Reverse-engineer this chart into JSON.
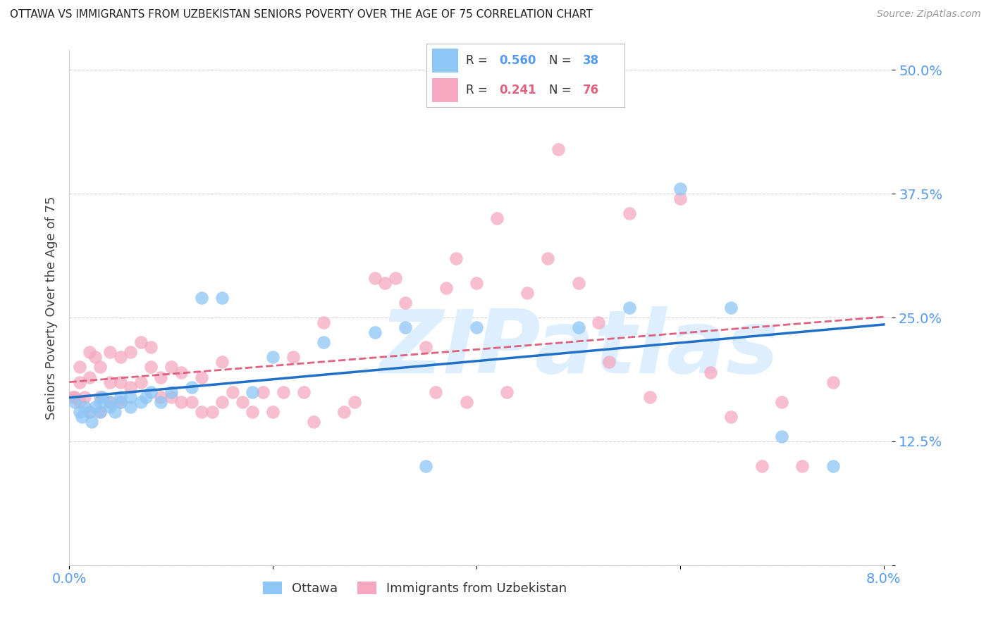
{
  "title": "OTTAWA VS IMMIGRANTS FROM UZBEKISTAN SENIORS POVERTY OVER THE AGE OF 75 CORRELATION CHART",
  "source": "Source: ZipAtlas.com",
  "ylabel": "Seniors Poverty Over the Age of 75",
  "x_min": 0.0,
  "x_max": 0.08,
  "y_min": 0.0,
  "y_max": 0.52,
  "y_ticks": [
    0.0,
    0.125,
    0.25,
    0.375,
    0.5
  ],
  "y_tick_labels": [
    "",
    "12.5%",
    "25.0%",
    "37.5%",
    "50.0%"
  ],
  "x_ticks": [
    0.0,
    0.02,
    0.04,
    0.06,
    0.08
  ],
  "x_tick_labels": [
    "0.0%",
    "",
    "",
    "",
    "8.0%"
  ],
  "legend_val1": "0.560",
  "legend_count1": "38",
  "legend_val2": "0.241",
  "legend_count2": "76",
  "color_ottawa": "#8ec6f5",
  "color_uzbekistan": "#f5a8c0",
  "color_trend_ottawa": "#2070c8",
  "color_trend_uzbekistan": "#e06080",
  "color_axis_labels": "#5599ee",
  "background_color": "#ffffff",
  "watermark_text": "ZIPatlas",
  "watermark_color": "#ddeeff",
  "ottawa_x": [
    0.0005,
    0.001,
    0.0012,
    0.0015,
    0.002,
    0.0022,
    0.0025,
    0.003,
    0.003,
    0.0032,
    0.004,
    0.004,
    0.0045,
    0.005,
    0.005,
    0.006,
    0.006,
    0.007,
    0.0075,
    0.008,
    0.009,
    0.01,
    0.012,
    0.013,
    0.015,
    0.018,
    0.02,
    0.025,
    0.03,
    0.033,
    0.035,
    0.04,
    0.05,
    0.055,
    0.06,
    0.065,
    0.07,
    0.075
  ],
  "ottawa_y": [
    0.165,
    0.155,
    0.15,
    0.16,
    0.155,
    0.145,
    0.16,
    0.155,
    0.165,
    0.17,
    0.16,
    0.165,
    0.155,
    0.165,
    0.17,
    0.16,
    0.17,
    0.165,
    0.17,
    0.175,
    0.165,
    0.175,
    0.18,
    0.27,
    0.27,
    0.175,
    0.21,
    0.225,
    0.235,
    0.24,
    0.1,
    0.24,
    0.24,
    0.26,
    0.38,
    0.26,
    0.13,
    0.1
  ],
  "uzbekistan_x": [
    0.0003,
    0.0005,
    0.001,
    0.001,
    0.001,
    0.0015,
    0.002,
    0.002,
    0.002,
    0.0025,
    0.003,
    0.003,
    0.003,
    0.004,
    0.004,
    0.004,
    0.005,
    0.005,
    0.005,
    0.006,
    0.006,
    0.007,
    0.007,
    0.008,
    0.008,
    0.009,
    0.009,
    0.01,
    0.01,
    0.011,
    0.011,
    0.012,
    0.013,
    0.013,
    0.014,
    0.015,
    0.015,
    0.016,
    0.017,
    0.018,
    0.019,
    0.02,
    0.021,
    0.022,
    0.023,
    0.024,
    0.025,
    0.027,
    0.028,
    0.03,
    0.031,
    0.032,
    0.033,
    0.035,
    0.036,
    0.037,
    0.038,
    0.039,
    0.04,
    0.042,
    0.043,
    0.045,
    0.047,
    0.048,
    0.05,
    0.052,
    0.053,
    0.055,
    0.057,
    0.06,
    0.063,
    0.065,
    0.068,
    0.07,
    0.072,
    0.075
  ],
  "uzbekistan_y": [
    0.17,
    0.17,
    0.165,
    0.185,
    0.2,
    0.17,
    0.155,
    0.19,
    0.215,
    0.21,
    0.155,
    0.17,
    0.2,
    0.165,
    0.185,
    0.215,
    0.165,
    0.185,
    0.21,
    0.18,
    0.215,
    0.185,
    0.225,
    0.2,
    0.22,
    0.17,
    0.19,
    0.17,
    0.2,
    0.165,
    0.195,
    0.165,
    0.155,
    0.19,
    0.155,
    0.165,
    0.205,
    0.175,
    0.165,
    0.155,
    0.175,
    0.155,
    0.175,
    0.21,
    0.175,
    0.145,
    0.245,
    0.155,
    0.165,
    0.29,
    0.285,
    0.29,
    0.265,
    0.22,
    0.175,
    0.28,
    0.31,
    0.165,
    0.285,
    0.35,
    0.175,
    0.275,
    0.31,
    0.42,
    0.285,
    0.245,
    0.205,
    0.355,
    0.17,
    0.37,
    0.195,
    0.15,
    0.1,
    0.165,
    0.1,
    0.185
  ]
}
